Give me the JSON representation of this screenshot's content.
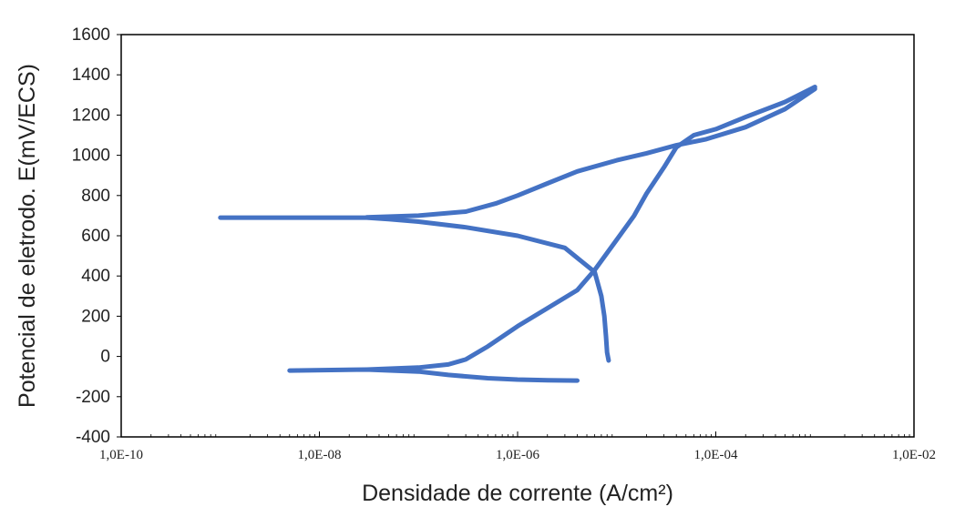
{
  "chart_data": {
    "type": "line",
    "title": "",
    "xlabel": "Densidade de corrente (A/cm²)",
    "ylabel": "Potencial de eletrodo. E(mV/ECS)",
    "x_scale": "log",
    "xlim": [
      1e-10,
      0.01
    ],
    "ylim": [
      -400,
      1600
    ],
    "x_tick_values": [
      1e-10,
      1e-08,
      1e-06,
      0.0001,
      0.01
    ],
    "x_tick_labels": [
      "1,0E-10",
      "1,0E-08",
      "1,0E-06",
      "1,0E-04",
      "1,0E-02"
    ],
    "y_ticks": [
      -400,
      -200,
      0,
      200,
      400,
      600,
      800,
      1000,
      1200,
      1400,
      1600
    ],
    "grid": false,
    "legend": "none",
    "color": "#4472c4",
    "series": [
      {
        "points": [
          [
            1e-09,
            690
          ],
          [
            1e-08,
            690
          ],
          [
            3e-08,
            690
          ],
          [
            5e-08,
            683
          ],
          [
            1e-07,
            670
          ],
          [
            3e-07,
            642
          ],
          [
            1e-06,
            600
          ],
          [
            3e-06,
            540
          ],
          [
            6e-06,
            420
          ],
          [
            7e-06,
            300
          ],
          [
            7.5e-06,
            200
          ],
          [
            7.8e-06,
            100
          ],
          [
            8e-06,
            20
          ],
          [
            8.3e-06,
            -20
          ]
        ]
      },
      {
        "points": [
          [
            5e-09,
            -70
          ],
          [
            3e-08,
            -65
          ],
          [
            1e-07,
            -75
          ],
          [
            2e-07,
            -92
          ],
          [
            5e-07,
            -108
          ],
          [
            1e-06,
            -115
          ],
          [
            2e-06,
            -118
          ],
          [
            4e-06,
            -120
          ]
        ]
      },
      {
        "points": [
          [
            3e-08,
            -65
          ],
          [
            1e-07,
            -55
          ],
          [
            2e-07,
            -40
          ],
          [
            3e-07,
            -15
          ],
          [
            5e-07,
            50
          ],
          [
            1e-06,
            150
          ],
          [
            2e-06,
            240
          ],
          [
            4e-06,
            330
          ],
          [
            6e-06,
            430
          ],
          [
            1e-05,
            580
          ],
          [
            1.5e-05,
            700
          ],
          [
            2e-05,
            810
          ],
          [
            3e-05,
            940
          ],
          [
            4e-05,
            1040
          ],
          [
            6e-05,
            1100
          ],
          [
            0.0001,
            1130
          ],
          [
            0.0002,
            1190
          ],
          [
            0.0005,
            1265
          ],
          [
            0.001,
            1340
          ]
        ]
      },
      {
        "points": [
          [
            3e-08,
            692
          ],
          [
            1e-07,
            700
          ],
          [
            3e-07,
            720
          ],
          [
            6e-07,
            760
          ],
          [
            1e-06,
            800
          ],
          [
            2e-06,
            860
          ],
          [
            4e-06,
            920
          ],
          [
            1e-05,
            975
          ],
          [
            2e-05,
            1010
          ],
          [
            4e-05,
            1050
          ],
          [
            8e-05,
            1080
          ],
          [
            0.0002,
            1140
          ],
          [
            0.0005,
            1230
          ],
          [
            0.001,
            1330
          ]
        ]
      }
    ]
  }
}
